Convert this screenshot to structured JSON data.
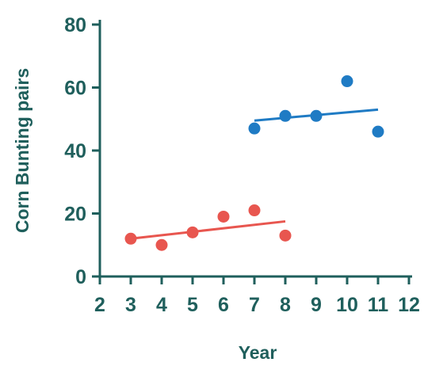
{
  "chart_data": {
    "type": "scatter",
    "title": "",
    "xlabel": "Year",
    "ylabel": "Corn Bunting pairs",
    "xlim": [
      2,
      12
    ],
    "ylim": [
      0,
      80
    ],
    "xticks": [
      2,
      3,
      4,
      5,
      6,
      7,
      8,
      9,
      10,
      11,
      12
    ],
    "yticks": [
      0,
      20,
      40,
      60,
      80
    ],
    "grid": false,
    "axis_color": "#1f5f5c",
    "series": [
      {
        "color": "#e8564f",
        "points": [
          [
            3,
            12
          ],
          [
            4,
            10
          ],
          [
            5,
            14
          ],
          [
            6,
            19
          ],
          [
            7,
            21
          ],
          [
            8,
            13
          ]
        ],
        "trendline": [
          [
            3,
            12
          ],
          [
            8,
            17.5
          ]
        ]
      },
      {
        "color": "#1f7bc4",
        "points": [
          [
            7,
            47
          ],
          [
            8,
            51
          ],
          [
            9,
            51
          ],
          [
            10,
            62
          ],
          [
            11,
            46
          ]
        ],
        "trendline": [
          [
            7,
            49.5
          ],
          [
            11,
            53
          ]
        ]
      }
    ]
  }
}
